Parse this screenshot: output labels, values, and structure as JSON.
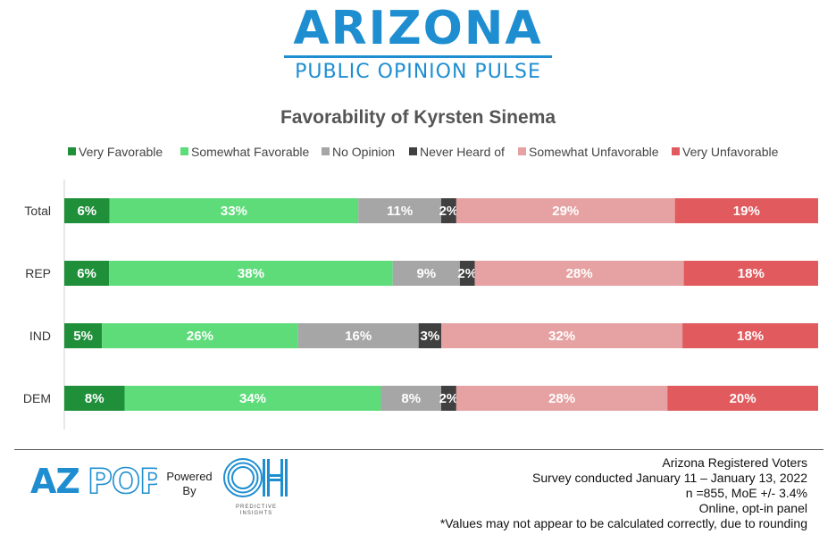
{
  "header": {
    "logo_main": "ARIZONA",
    "logo_sub": "PUBLIC OPINION PULSE"
  },
  "colors": {
    "very_favorable": "#1f8f3a",
    "somewhat_favorable": "#5fdc7a",
    "no_opinion": "#a6a6a6",
    "never_heard": "#404040",
    "somewhat_unfavorable": "#e6a2a2",
    "very_unfavorable": "#e05a5e",
    "brand_blue": "#1e8ed1",
    "label_text": "#ffffff"
  },
  "chart_data": {
    "type": "bar",
    "orientation": "horizontal",
    "stacked": true,
    "title": "Favorability of Kyrsten Sinema",
    "categories": [
      "Total",
      "REP",
      "IND",
      "DEM"
    ],
    "series": [
      {
        "name": "Very Favorable",
        "values": [
          6,
          6,
          5,
          8
        ],
        "labels": [
          "6%",
          "6%",
          "5%",
          "8%"
        ]
      },
      {
        "name": "Somewhat Favorable",
        "values": [
          33,
          38,
          26,
          34
        ],
        "labels": [
          "33%",
          "38%",
          "26%",
          "34%"
        ]
      },
      {
        "name": "No Opinion",
        "values": [
          11,
          9,
          16,
          8
        ],
        "labels": [
          "11%",
          "9%",
          "16%",
          "8%"
        ]
      },
      {
        "name": "Never Heard of",
        "values": [
          2,
          2,
          3,
          2
        ],
        "labels": [
          "2%",
          "2%",
          "3%",
          "2%"
        ]
      },
      {
        "name": "Somewhat Unfavorable",
        "values": [
          29,
          28,
          32,
          28
        ],
        "labels": [
          "29%",
          "28%",
          "32%",
          "28%"
        ]
      },
      {
        "name": "Very Unfavorable",
        "values": [
          19,
          18,
          18,
          20
        ],
        "labels": [
          "19%",
          "18%",
          "18%",
          "20%"
        ]
      }
    ],
    "legend_position": "top",
    "grid": false
  },
  "footer": {
    "azpop_logo": "AZPOP",
    "powered_by": "Powered By",
    "oh_logo": "OH",
    "oh_caption": "PREDICTIVE INSIGHTS",
    "notes": [
      "Arizona Registered Voters",
      "Survey conducted January 11 – January 13, 2022",
      "n =855, MoE +/- 3.4%",
      "Online, opt-in panel",
      "*Values may not appear to be calculated correctly, due to rounding"
    ]
  }
}
